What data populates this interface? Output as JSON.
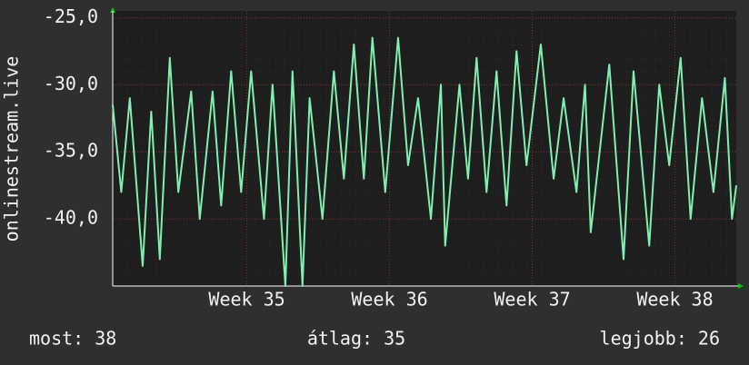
{
  "chart_data": {
    "type": "line",
    "y_label": "onlinestream.live",
    "x": [
      34.06,
      34.12,
      34.18,
      34.27,
      34.33,
      34.39,
      34.46,
      34.52,
      34.61,
      34.67,
      34.76,
      34.82,
      34.89,
      34.96,
      35.03,
      35.12,
      35.18,
      35.27,
      35.32,
      35.39,
      35.44,
      35.53,
      35.61,
      35.68,
      35.75,
      35.82,
      35.88,
      35.97,
      36.06,
      36.13,
      36.2,
      36.29,
      36.36,
      36.39,
      36.49,
      36.55,
      36.61,
      36.68,
      36.75,
      36.82,
      36.89,
      36.96,
      37.06,
      37.15,
      37.22,
      37.31,
      37.37,
      37.41,
      37.54,
      37.64,
      37.71,
      37.82,
      37.89,
      37.96,
      38.04,
      38.11,
      38.19,
      38.27,
      38.35,
      38.4,
      38.43
    ],
    "series": [
      {
        "color": "#80f0b0",
        "values": [
          -31.5,
          -38,
          -31,
          -43.5,
          -32,
          -43,
          -28,
          -38,
          -30.5,
          -40,
          -30.5,
          -39,
          -29,
          -38,
          -29,
          -40,
          -30,
          -45,
          -29,
          -45,
          -31,
          -40,
          -29,
          -37,
          -27,
          -37,
          -26.5,
          -38,
          -26.5,
          -36,
          -31,
          -40,
          -30,
          -42,
          -30,
          -37,
          -28,
          -38,
          -29,
          -39,
          -27.5,
          -36,
          -27,
          -37,
          -31,
          -38,
          -30,
          -41,
          -28.5,
          -43,
          -29,
          -42,
          -30,
          -36,
          -28,
          -40,
          -31,
          -38,
          -29.5,
          -40,
          -37.5
        ]
      }
    ],
    "xlim": [
      34.06,
      38.43
    ],
    "ylim": [
      -45,
      -24.5
    ],
    "xticks": [
      {
        "value": 35,
        "label": "Week 35"
      },
      {
        "value": 36,
        "label": "Week 36"
      },
      {
        "value": 37,
        "label": "Week 37"
      },
      {
        "value": 38,
        "label": "Week 38"
      }
    ],
    "yticks": [
      {
        "value": -25,
        "label": "-25,0"
      },
      {
        "value": -30,
        "label": "-30,0"
      },
      {
        "value": -35,
        "label": "-35,0"
      },
      {
        "value": -40,
        "label": "-40,0"
      }
    ],
    "grid": true,
    "summary": [
      "most: 38",
      "átlag: 35",
      "legjobb: 26"
    ]
  }
}
